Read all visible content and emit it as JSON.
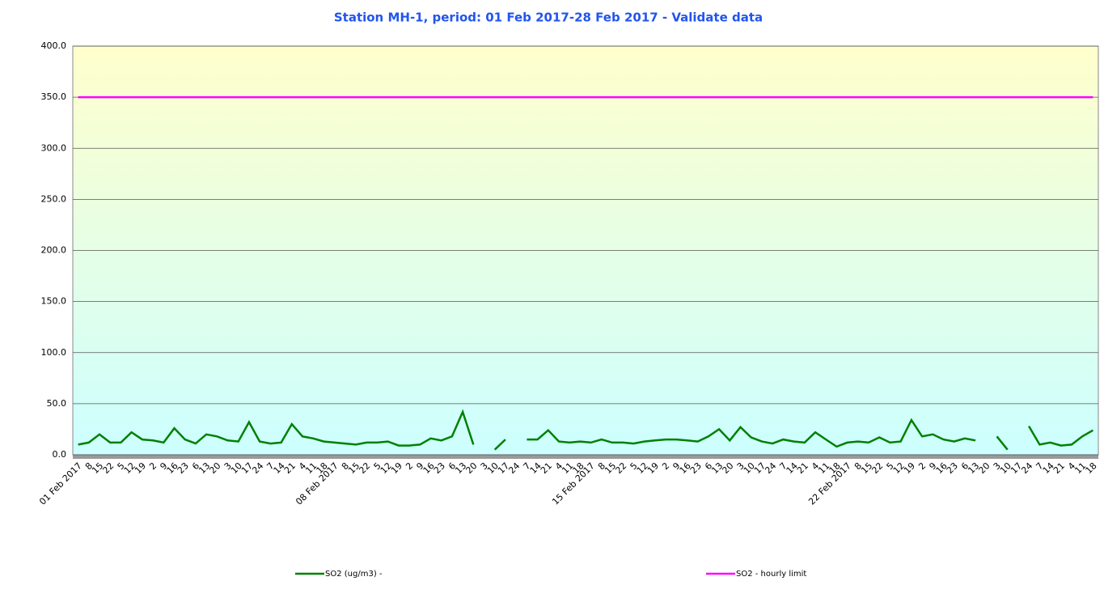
{
  "chart_data": {
    "type": "line",
    "title": "Station MH-1, period: 01 Feb 2017-28 Feb 2017 - Validate data",
    "categories": [
      "01 Feb 2017",
      "8",
      "15",
      "22",
      "5",
      "12",
      "19",
      "2",
      "9",
      "16",
      "23",
      "6",
      "13",
      "20",
      "3",
      "10",
      "17",
      "24",
      "7",
      "14",
      "21",
      "4",
      "11",
      "18",
      "08 Feb 2017",
      "8",
      "15",
      "22",
      "5",
      "12",
      "19",
      "2",
      "9",
      "16",
      "23",
      "6",
      "13",
      "20",
      "3",
      "10",
      "17",
      "24",
      "7",
      "14",
      "21",
      "4",
      "11",
      "18",
      "15 Feb 2017",
      "8",
      "15",
      "22",
      "5",
      "12",
      "19",
      "2",
      "9",
      "16",
      "23",
      "6",
      "13",
      "20",
      "3",
      "10",
      "17",
      "24",
      "7",
      "14",
      "21",
      "4",
      "11",
      "18",
      "22 Feb 2017",
      "8",
      "15",
      "22",
      "5",
      "12",
      "19",
      "2",
      "9",
      "16",
      "23",
      "6",
      "13",
      "20",
      "3",
      "10",
      "17",
      "24",
      "7",
      "14",
      "21",
      "4",
      "11",
      "18"
    ],
    "series": [
      {
        "name": "SO2 (ug/m3)  -",
        "color": "#008000",
        "values": [
          10,
          12,
          20,
          12,
          12,
          22,
          15,
          14,
          12,
          26,
          15,
          11,
          20,
          18,
          14,
          13,
          32,
          13,
          11,
          12,
          30,
          18,
          16,
          13,
          12,
          11,
          10,
          12,
          12,
          13,
          9,
          9,
          10,
          16,
          14,
          18,
          42,
          10,
          null,
          5,
          15,
          null,
          15,
          15,
          24,
          13,
          12,
          13,
          12,
          15,
          12,
          12,
          11,
          13,
          14,
          15,
          15,
          14,
          13,
          18,
          25,
          14,
          27,
          17,
          13,
          11,
          15,
          13,
          12,
          22,
          15,
          8,
          12,
          13,
          12,
          17,
          12,
          13,
          34,
          18,
          20,
          15,
          13,
          16,
          14,
          null,
          18,
          5,
          null,
          28,
          10,
          12,
          9,
          10,
          18,
          24
        ]
      },
      {
        "name": "SO2 - hourly limit",
        "color": "#ff00ff",
        "values": [
          350,
          350,
          350,
          350,
          350,
          350,
          350,
          350,
          350,
          350,
          350,
          350,
          350,
          350,
          350,
          350,
          350,
          350,
          350,
          350,
          350,
          350,
          350,
          350,
          350,
          350,
          350,
          350,
          350,
          350,
          350,
          350,
          350,
          350,
          350,
          350,
          350,
          350,
          350,
          350,
          350,
          350,
          350,
          350,
          350,
          350,
          350,
          350,
          350,
          350,
          350,
          350,
          350,
          350,
          350,
          350,
          350,
          350,
          350,
          350,
          350,
          350,
          350,
          350,
          350,
          350,
          350,
          350,
          350,
          350,
          350,
          350,
          350,
          350,
          350,
          350,
          350,
          350,
          350,
          350,
          350,
          350,
          350,
          350,
          350,
          350,
          350,
          350,
          350,
          350,
          350,
          350,
          350,
          350,
          350,
          350
        ]
      }
    ],
    "ylim": [
      0,
      400
    ],
    "yticks": [
      {
        "value": 0,
        "label": "0.0"
      },
      {
        "value": 50,
        "label": "50.0"
      },
      {
        "value": 100,
        "label": "100.0"
      },
      {
        "value": 150,
        "label": "150.0"
      },
      {
        "value": 200,
        "label": "200.0"
      },
      {
        "value": 250,
        "label": "250.0"
      },
      {
        "value": 300,
        "label": "300.0"
      },
      {
        "value": 350,
        "label": "350.0"
      },
      {
        "value": 400,
        "label": "400.0"
      }
    ],
    "grid": true
  }
}
